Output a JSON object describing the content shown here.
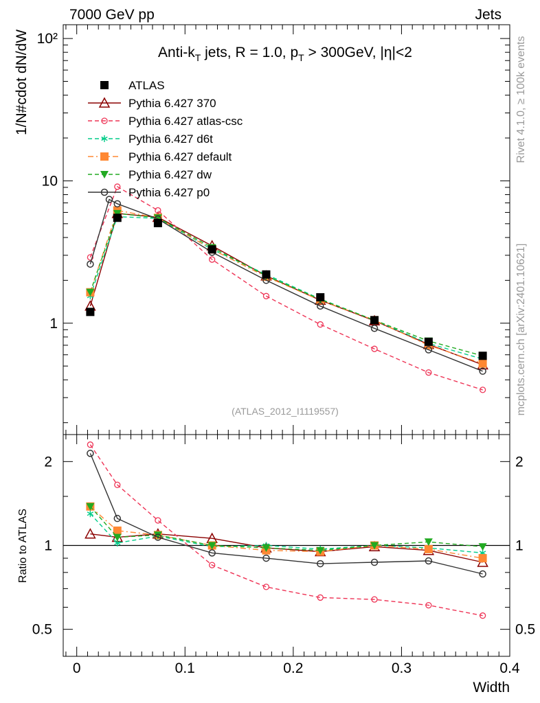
{
  "header": {
    "left": "7000 GeV pp",
    "right": "Jets"
  },
  "side_labels": {
    "rivet": "Rivet 4.1.0, ≥ 100k events",
    "mcplots": "mcplots.cern.ch [arXiv:2401.10621]"
  },
  "chart_data": {
    "type": "line",
    "title": "Anti-kT jets, R = 1.0, pT > 300GeV, |η|<2",
    "title_parts": {
      "prefix": "Anti-k",
      "sub1": "T",
      "middle": " jets, R = 1.0, p",
      "sub2": "T",
      "suffix": " > 300GeV, |η|<2"
    },
    "analysis_id": "(ATLAS_2012_I1119557)",
    "xlabel": "Width",
    "ylabel_main": "1/N#cdot dN/dW",
    "ylabel_ratio": "Ratio to ATLAS",
    "xlim": [
      -0.0125,
      0.4
    ],
    "ylim_main_log": [
      0.165,
      125
    ],
    "ylim_ratio_log": [
      0.4,
      2.5
    ],
    "x_ticks": [
      "0",
      "0.1",
      "0.2",
      "0.3",
      "0.4"
    ],
    "main_y_ticks": [
      "1",
      "10",
      "10²"
    ],
    "ratio_y_ticks": [
      "0.5",
      "1",
      "2"
    ],
    "x": [
      0.0125,
      0.0375,
      0.075,
      0.125,
      0.175,
      0.225,
      0.275,
      0.325,
      0.375
    ],
    "data": {
      "name": "ATLAS",
      "values": [
        1.2,
        5.5,
        5.05,
        3.3,
        2.2,
        1.52,
        1.05,
        0.74,
        0.59
      ]
    },
    "series": [
      {
        "name": "Pythia 6.427 370",
        "color": "#8b0000",
        "dash": "solid",
        "marker": "triangle",
        "values": [
          1.32,
          5.9,
          5.55,
          3.5,
          2.15,
          1.45,
          1.04,
          0.71,
          0.51
        ]
      },
      {
        "name": "Pythia 6.427 atlas-csc",
        "color": "#ee3355",
        "dash": "dashed",
        "marker": "circle-small",
        "x": [
          0.0125,
          0.0375,
          0.075,
          0.125,
          0.175,
          0.225,
          0.275,
          0.325,
          0.375
        ],
        "values": [
          2.9,
          9.1,
          6.2,
          2.8,
          1.55,
          0.98,
          0.66,
          0.45,
          0.34
        ]
      },
      {
        "name": "Pythia 6.427 d6t",
        "color": "#00cc88",
        "dash": "dashed",
        "marker": "star",
        "values": [
          1.55,
          5.6,
          5.45,
          3.3,
          2.2,
          1.48,
          1.05,
          0.72,
          0.56
        ]
      },
      {
        "name": "Pythia 6.427 default",
        "color": "#ff8833",
        "dash": "dashdot",
        "marker": "square",
        "values": [
          1.65,
          6.2,
          5.5,
          3.3,
          2.12,
          1.45,
          1.05,
          0.7,
          0.52
        ]
      },
      {
        "name": "Pythia 6.427 dw",
        "color": "#22aa22",
        "dash": "dashed",
        "marker": "triangle-down",
        "values": [
          1.65,
          5.9,
          5.5,
          3.4,
          2.15,
          1.47,
          1.05,
          0.75,
          0.59
        ]
      },
      {
        "name": "Pythia 6.427 p0",
        "color": "#333333",
        "dash": "solid",
        "marker": "circle",
        "x": [
          0.0125,
          0.03,
          0.0375,
          0.075,
          0.125,
          0.175,
          0.225,
          0.275,
          0.325,
          0.375
        ],
        "values": [
          2.6,
          7.4,
          6.9,
          5.4,
          3.15,
          2.0,
          1.32,
          0.92,
          0.65,
          0.46
        ]
      }
    ],
    "ratio_series": [
      {
        "name": "Pythia 6.427 370",
        "values": [
          1.1,
          1.07,
          1.1,
          1.06,
          0.98,
          0.95,
          0.99,
          0.96,
          0.87
        ]
      },
      {
        "name": "Pythia 6.427 atlas-csc",
        "values": [
          2.3,
          1.65,
          1.23,
          0.85,
          0.71,
          0.65,
          0.64,
          0.61,
          0.56
        ]
      },
      {
        "name": "Pythia 6.427 d6t",
        "values": [
          1.3,
          1.02,
          1.08,
          0.99,
          1.0,
          0.97,
          1.0,
          0.98,
          0.94
        ]
      },
      {
        "name": "Pythia 6.427 default",
        "values": [
          1.38,
          1.13,
          1.09,
          1.0,
          0.96,
          0.95,
          1.0,
          0.97,
          0.9
        ]
      },
      {
        "name": "Pythia 6.427 dw",
        "values": [
          1.38,
          1.07,
          1.09,
          1.0,
          0.98,
          0.96,
          1.0,
          1.03,
          0.99
        ]
      },
      {
        "name": "Pythia 6.427 p0",
        "values": [
          2.14,
          1.25,
          1.07,
          0.94,
          0.9,
          0.86,
          0.87,
          0.88,
          0.79
        ]
      }
    ]
  }
}
